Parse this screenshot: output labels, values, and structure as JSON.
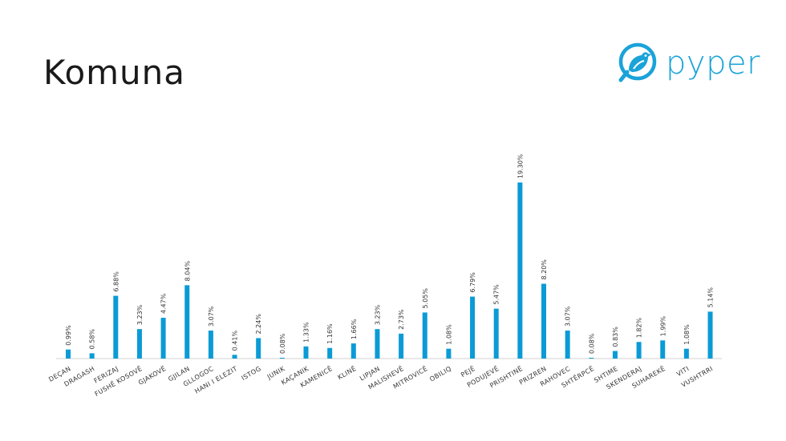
{
  "header": {
    "title": "Komuna",
    "logo_text": "pyper"
  },
  "colors": {
    "bar": "#0a9bd6",
    "logo": "#1aa3d9",
    "axis": "#d0d0d0"
  },
  "chart_data": {
    "type": "bar",
    "title": "",
    "xlabel": "",
    "ylabel": "",
    "ylim": [
      0,
      20
    ],
    "grid": false,
    "categories": [
      "DEÇAN",
      "DRAGASH",
      "FERIZAJ",
      "FUSHË KOSOVË",
      "GJAKOVË",
      "GJILAN",
      "GLLOGOC",
      "HANI I ELEZIT",
      "ISTOG",
      "JUNIK",
      "KAÇANIK",
      "KAMENICË",
      "KLINË",
      "LIPJAN",
      "MALISHEVË",
      "MITROVICË",
      "OBILIQ",
      "PEJË",
      "PODUJEVË",
      "PRISHTINË",
      "PRIZREN",
      "RAHOVEC",
      "SHTËRPCË",
      "SHTIME",
      "SKENDERAJ",
      "SUHAREKË",
      "VITI",
      "VUSHTRRI"
    ],
    "values": [
      0.99,
      0.58,
      6.88,
      3.23,
      4.47,
      8.04,
      3.07,
      0.41,
      2.24,
      0.08,
      1.33,
      1.16,
      1.66,
      3.23,
      2.73,
      5.05,
      1.08,
      6.79,
      5.47,
      19.3,
      8.2,
      3.07,
      0.08,
      0.83,
      1.82,
      1.99,
      1.08,
      5.14
    ],
    "data_labels": [
      "0.99%",
      "0.58%",
      "6.88%",
      "3.23%",
      "4.47%",
      "8.04%",
      "3.07%",
      "0.41%",
      "2.24%",
      "0.08%",
      "1.33%",
      "1.16%",
      "1.66%",
      "3.23%",
      "2.73%",
      "5.05%",
      "1.08%",
      "6.79%",
      "5.47%",
      "19.30%",
      "8.20%",
      "3.07%",
      "0.08%",
      "0.83%",
      "1.82%",
      "1.99%",
      "1.08%",
      "5.14%"
    ]
  }
}
